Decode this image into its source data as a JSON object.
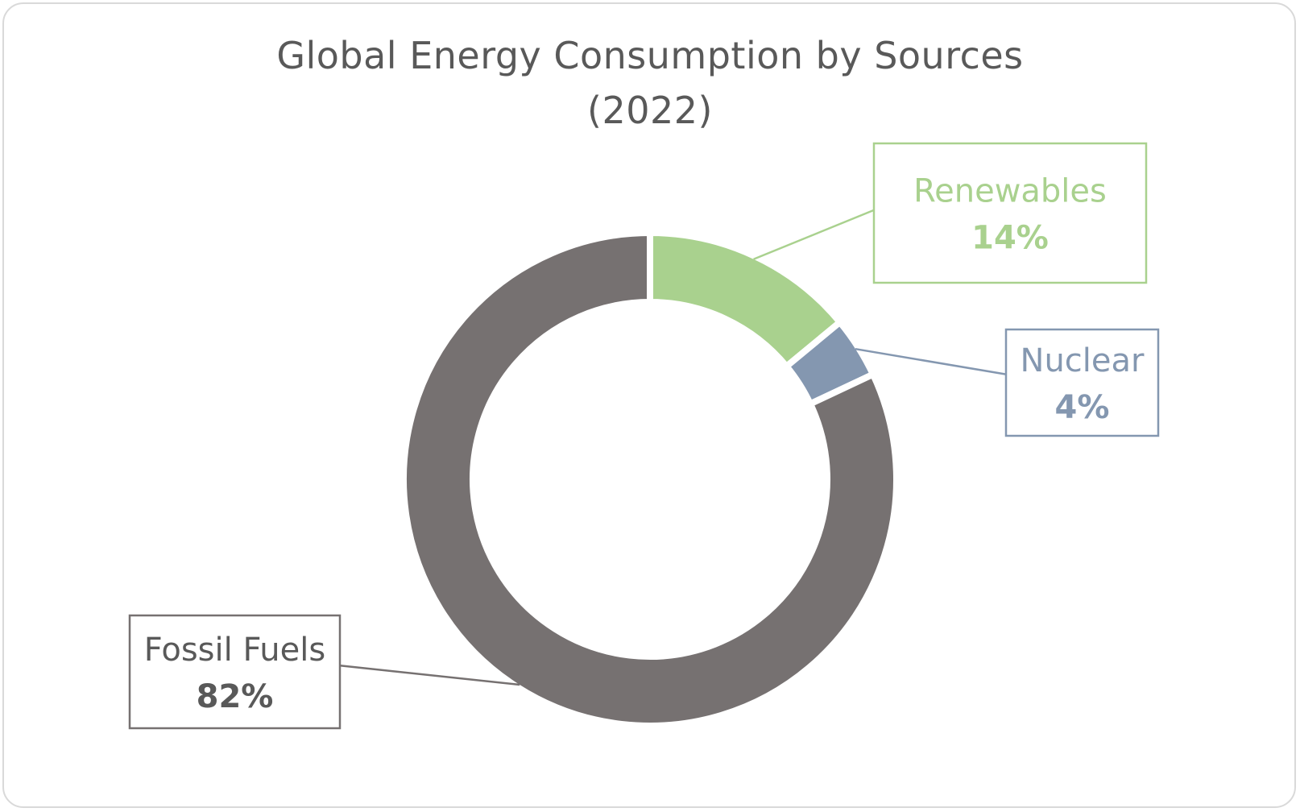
{
  "chart_data": {
    "type": "pie",
    "title": "Global Energy Consumption by Sources",
    "subtitle": "(2022)",
    "donut": true,
    "slices": [
      {
        "label": "Renewables",
        "value": 14,
        "display": "14%",
        "color": "#a9d18e"
      },
      {
        "label": "Nuclear",
        "value": 4,
        "display": "4%",
        "color": "#8497b0"
      },
      {
        "label": "Fossil Fuels",
        "value": 82,
        "display": "82%",
        "color": "#767171"
      }
    ],
    "legend": "none"
  }
}
